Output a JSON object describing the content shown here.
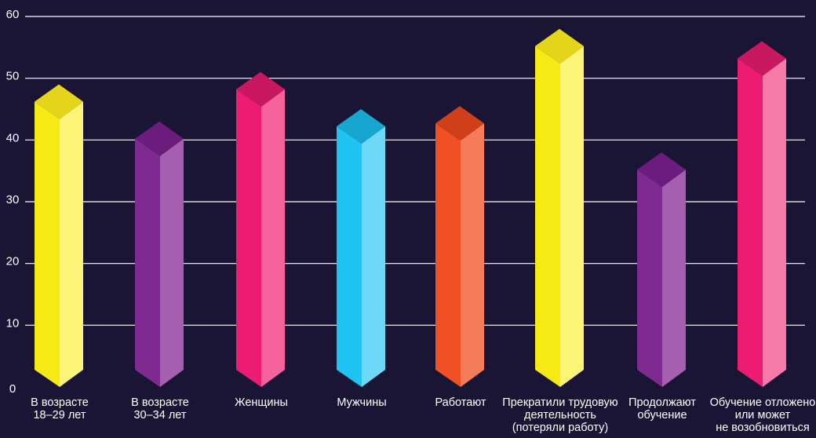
{
  "chart_data": {
    "type": "bar",
    "title": "",
    "xlabel": "",
    "ylabel": "",
    "ylim": [
      0,
      60
    ],
    "yticks": [
      "0",
      "10",
      "20",
      "30",
      "40",
      "50",
      "60"
    ],
    "grid": true,
    "style": "3d-pillars",
    "categories": [
      [
        "В возрасте",
        "18–29 лет"
      ],
      [
        "В возрасте",
        "30–34 лет"
      ],
      [
        "Женщины"
      ],
      [
        "Мужчины"
      ],
      [
        "Работают"
      ],
      [
        "Прекратили трудовую",
        "деятельность",
        "(потеряли работу)"
      ],
      [
        "Продолжают",
        "обучение"
      ],
      [
        "Обучение отложено",
        "или может",
        "не возобновиться"
      ]
    ],
    "values": [
      49,
      43,
      51,
      45,
      45.5,
      58,
      38,
      56
    ],
    "colors": [
      {
        "front": "#f5ea14",
        "side": "#fbf476",
        "top": "#e4d51b"
      },
      {
        "front": "#7e2a90",
        "side": "#a45fb0",
        "top": "#6c1c7c"
      },
      {
        "front": "#ec1c72",
        "side": "#f5639a",
        "top": "#c8185f"
      },
      {
        "front": "#1dc4f1",
        "side": "#6ed9f6",
        "top": "#16a6cf"
      },
      {
        "front": "#f05024",
        "side": "#f47c58",
        "top": "#cf3f1a"
      },
      {
        "front": "#f5ea14",
        "side": "#fbf476",
        "top": "#e4d51b"
      },
      {
        "front": "#7e2a90",
        "side": "#a45fb0",
        "top": "#6c1c7c"
      },
      {
        "front": "#ec1c72",
        "side": "#f57aa8",
        "top": "#c8185f"
      }
    ],
    "background": "#1b1535"
  }
}
